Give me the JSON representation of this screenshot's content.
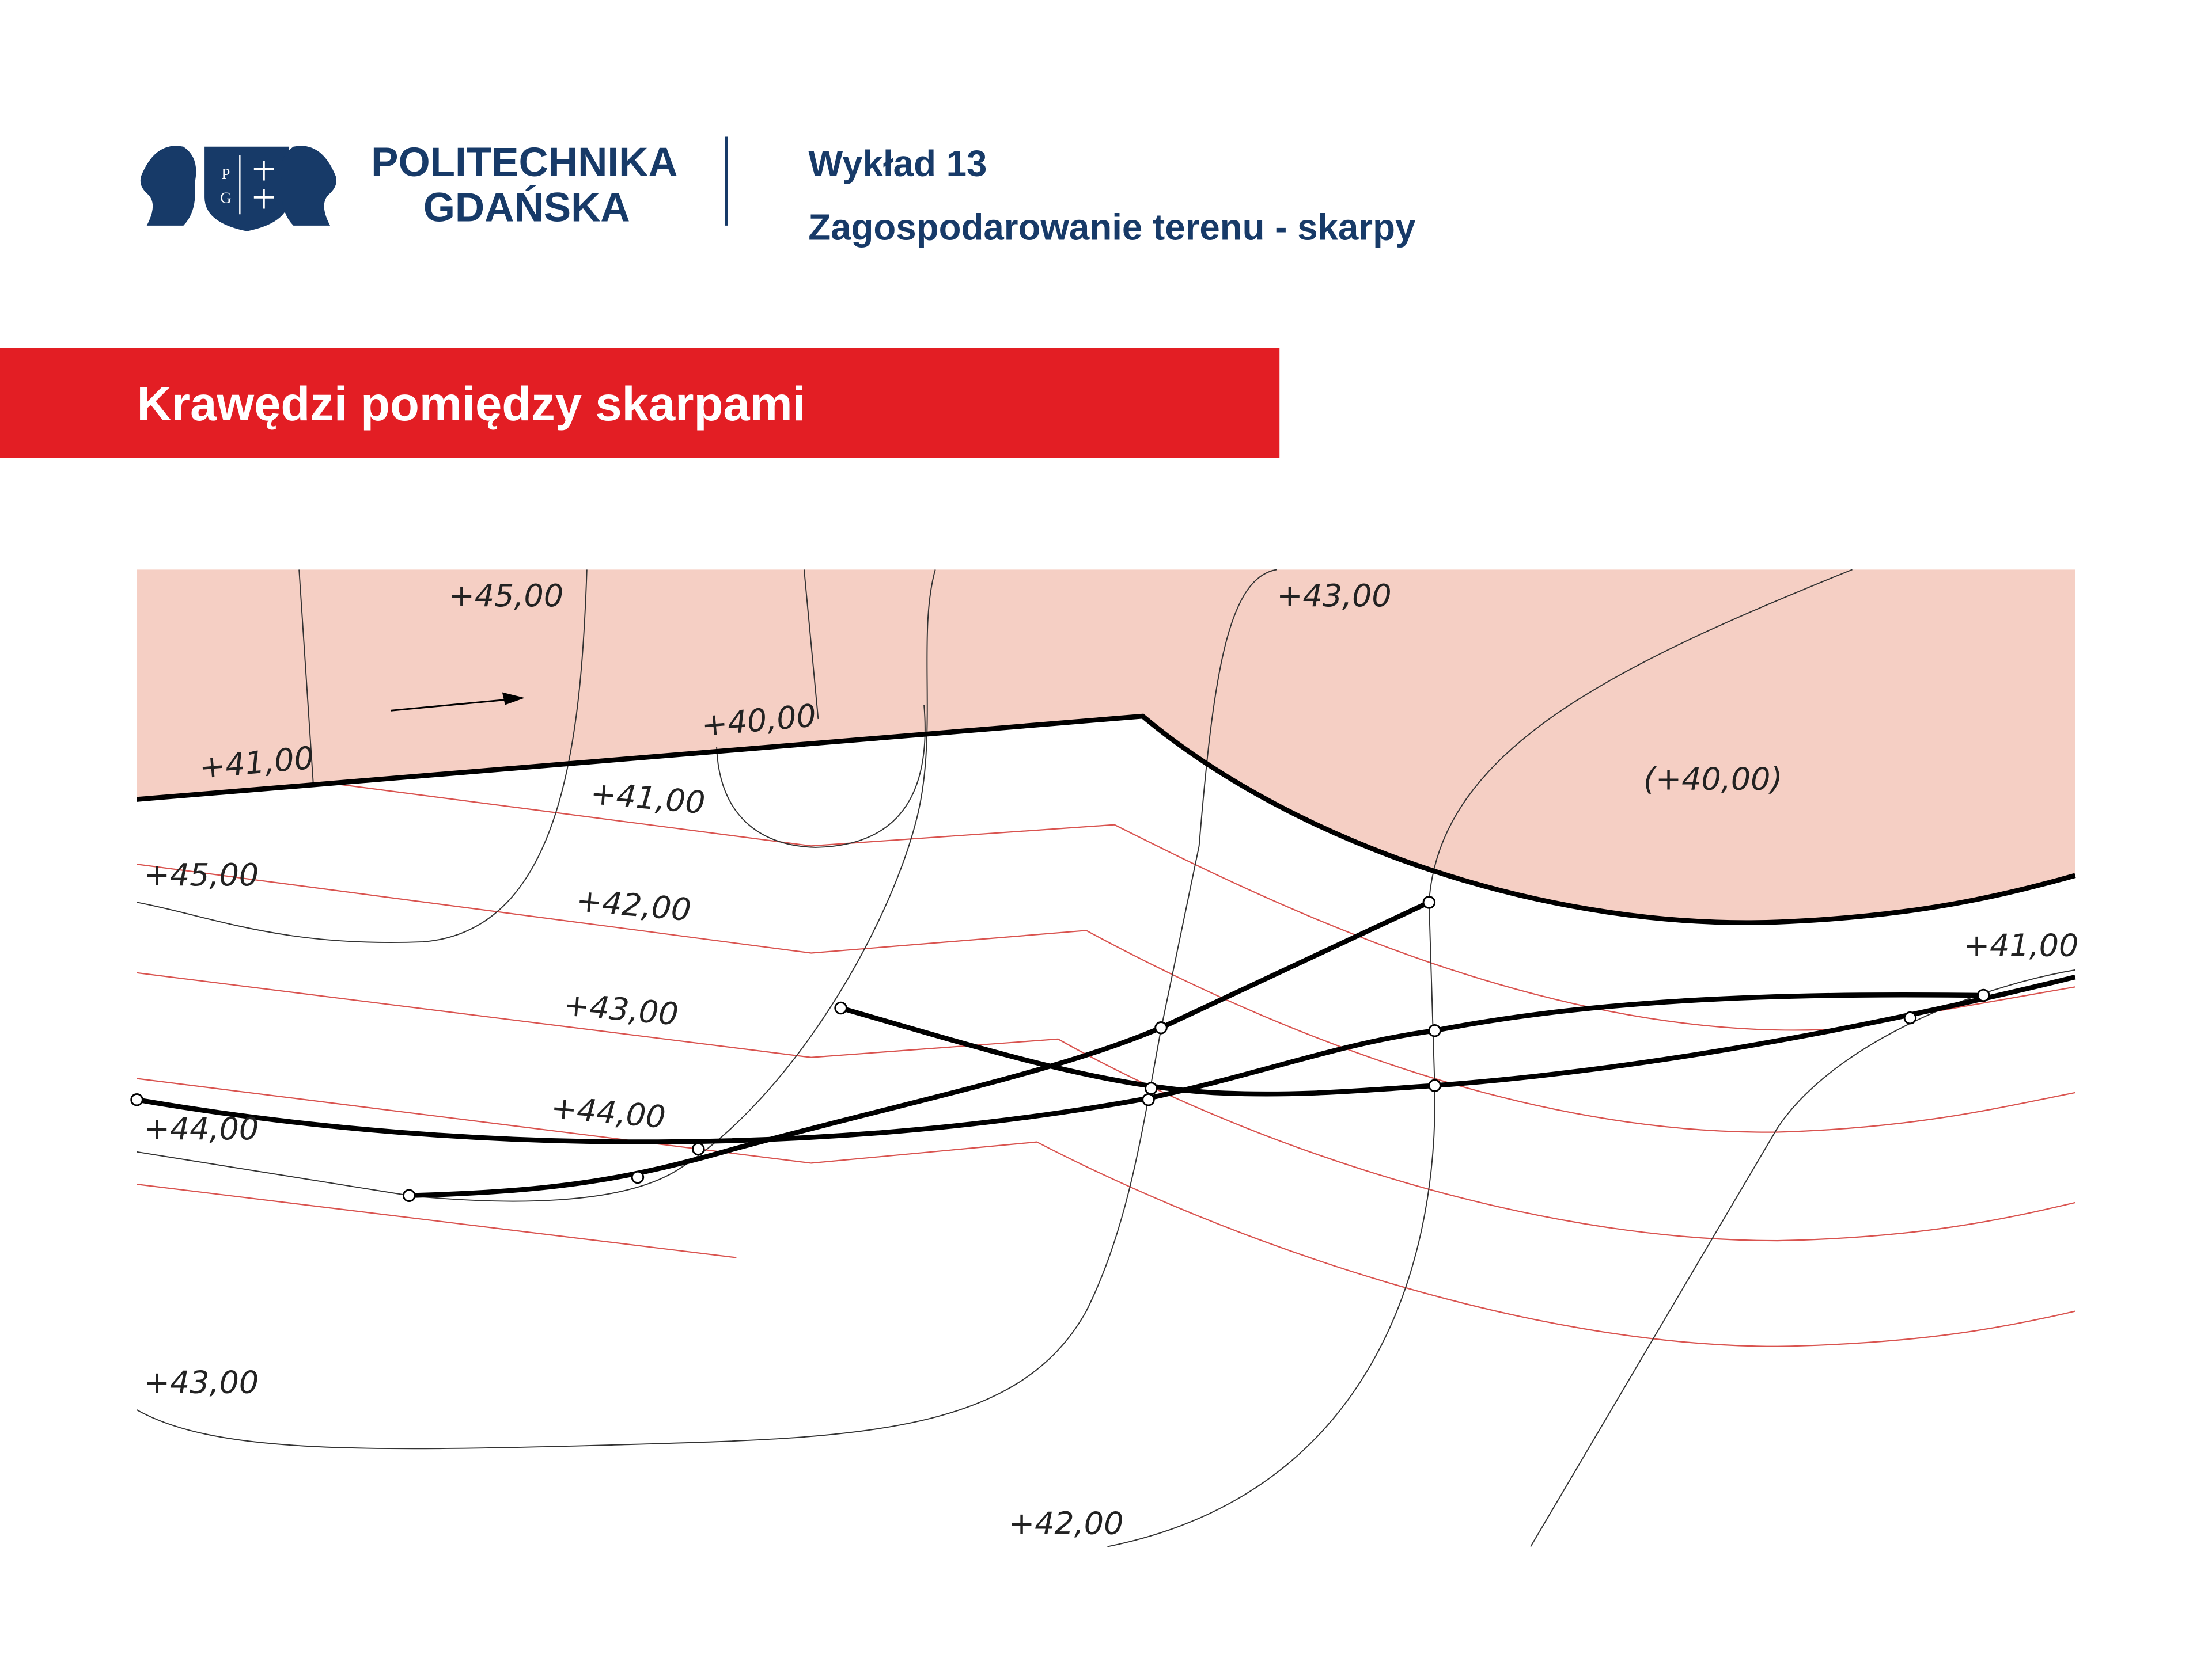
{
  "header": {
    "logo": {
      "letters": [
        "P",
        "G"
      ],
      "name_line1": "POLITECHNIKA",
      "name_line2": "GDAŃSKA"
    },
    "lecture": "Wykład 13",
    "subtitle": "Zagospodarowanie terenu - skarpy"
  },
  "section_title": "Krawędzi pomiędzy skarpami",
  "diagram": {
    "labels": [
      "+45,00",
      "+43,00",
      "+40,00",
      "+41,00",
      "(+40,00)",
      "+41,00",
      "+45,00",
      "+42,00",
      "+41,00",
      "+43,00",
      "+44,00",
      "+44,00",
      "+43,00",
      "+42,00"
    ]
  }
}
